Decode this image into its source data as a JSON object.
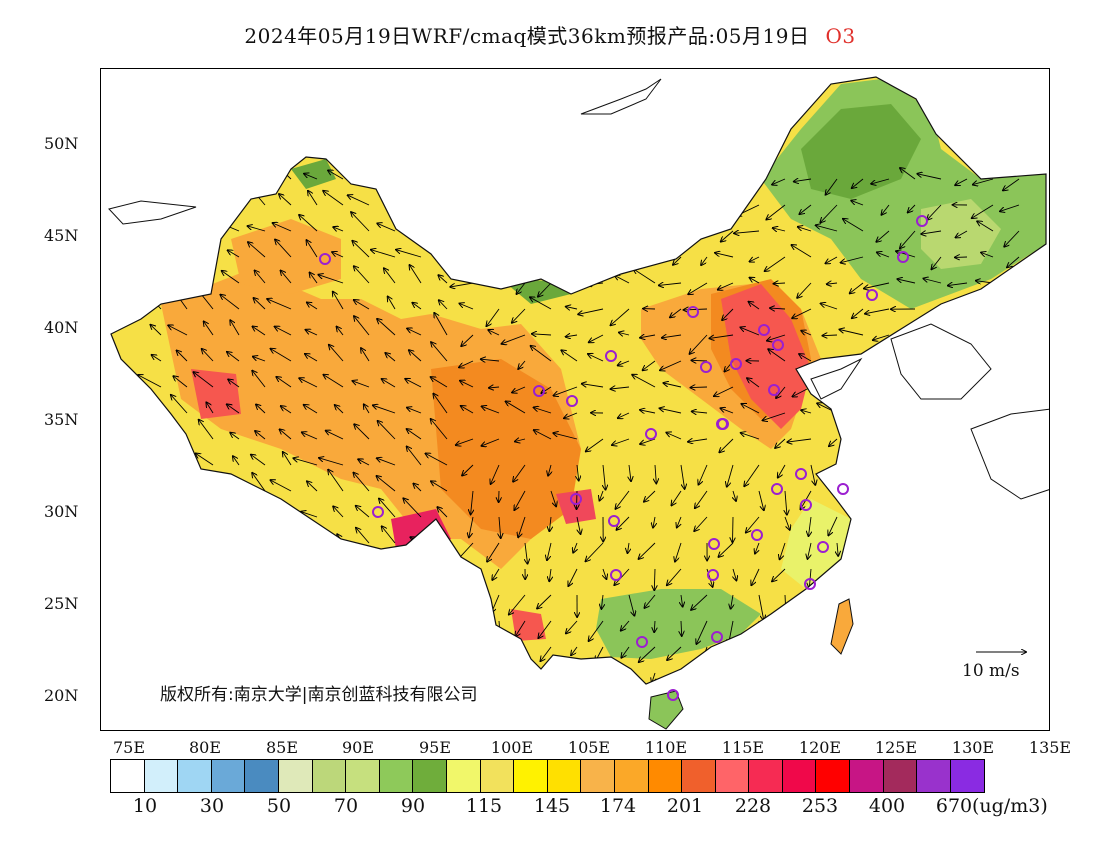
{
  "header": {
    "title": "2024年05月19日WRF/cmaq模式36km预报产品:05月19日",
    "pollutant": "O3",
    "pollutant_color": "#e0302b"
  },
  "map": {
    "lat_labels": [
      "50N",
      "45N",
      "40N",
      "35N",
      "30N",
      "25N",
      "20N"
    ],
    "lon_labels": [
      "75E",
      "80E",
      "85E",
      "90E",
      "95E",
      "100E",
      "105E",
      "110E",
      "115E",
      "120E",
      "125E",
      "130E",
      "135E"
    ],
    "copyright": "版权所有:南京大学|南京创蓝科技有限公司",
    "wind_scale": "10 m/s",
    "station_marker_color": "#9b1fd0"
  },
  "legend": {
    "colors": [
      "#ffffff",
      "#d2effb",
      "#9fd6f3",
      "#6aa9d8",
      "#4a8bc0",
      "#dfe9b9",
      "#bcd77a",
      "#c6e07e",
      "#8ec95a",
      "#6fad3b",
      "#f1f76a",
      "#f2e15c",
      "#fff200",
      "#ffe000",
      "#f8b34a",
      "#fba828",
      "#ff8a00",
      "#f0602c",
      "#ff6468",
      "#f62b53",
      "#f0084a",
      "#ff0000",
      "#c71585",
      "#a32a5c",
      "#9932cc",
      "#8a2be2"
    ],
    "labels": [
      "10",
      "30",
      "50",
      "70",
      "90",
      "115",
      "145",
      "174",
      "201",
      "228",
      "253",
      "400",
      "670"
    ],
    "unit": "(ug/m3)"
  }
}
